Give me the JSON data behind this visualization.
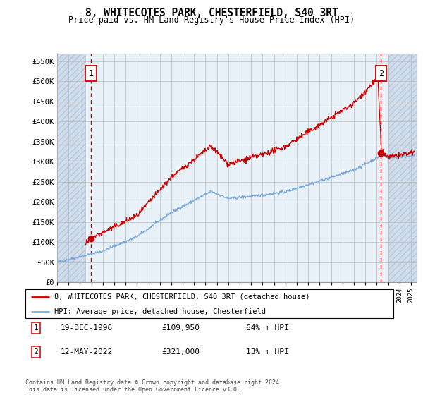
{
  "title": "8, WHITECOTES PARK, CHESTERFIELD, S40 3RT",
  "subtitle": "Price paid vs. HM Land Registry's House Price Index (HPI)",
  "ylim": [
    0,
    570000
  ],
  "xlim_start": 1994.0,
  "xlim_end": 2025.5,
  "transaction1": {
    "date_num": 1996.97,
    "price": 109950,
    "label": "1"
  },
  "transaction2": {
    "date_num": 2022.37,
    "price": 321000,
    "label": "2"
  },
  "legend_line1": "8, WHITECOTES PARK, CHESTERFIELD, S40 3RT (detached house)",
  "legend_line2": "HPI: Average price, detached house, Chesterfield",
  "annotation1_date": "19-DEC-1996",
  "annotation1_price": "£109,950",
  "annotation1_hpi": "64% ↑ HPI",
  "annotation2_date": "12-MAY-2022",
  "annotation2_price": "£321,000",
  "annotation2_hpi": "13% ↑ HPI",
  "footer": "Contains HM Land Registry data © Crown copyright and database right 2024.\nThis data is licensed under the Open Government Licence v3.0.",
  "hpi_color": "#7aaadd",
  "price_color": "#cc0000",
  "chart_bg": "#e8f0f8",
  "hatch_bg": "#d0dcea",
  "grid_color": "#bbbbbb",
  "dashed_vline_color": "#cc0000"
}
